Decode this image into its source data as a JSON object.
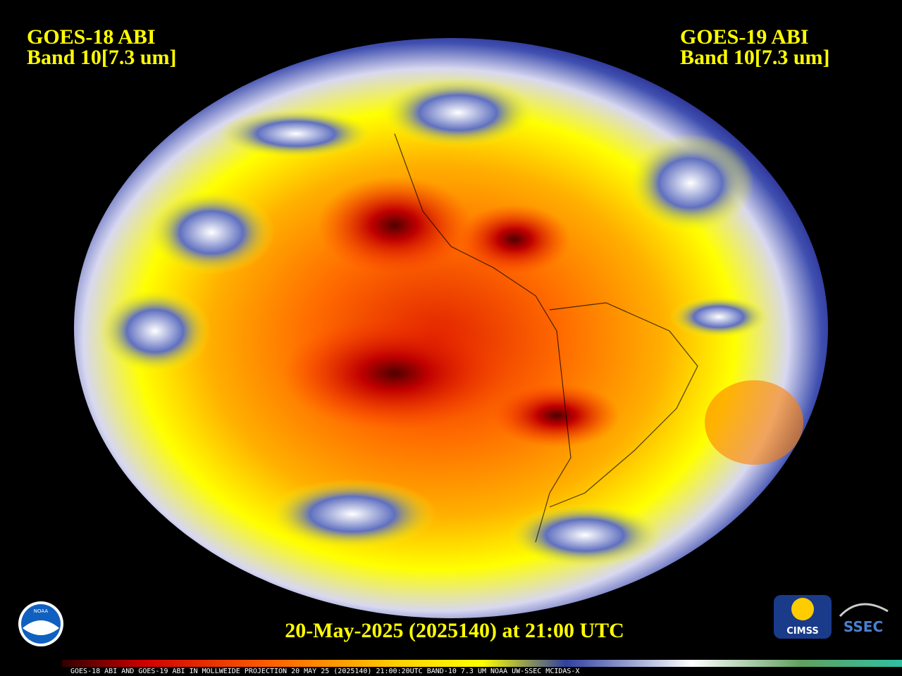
{
  "left_label": {
    "title": "GOES-18 ABI",
    "band": "Band 10[7.3 um]"
  },
  "right_label": {
    "title": "GOES-19 ABI",
    "band": "Band 10[7.3 um]"
  },
  "timestamp": "20-May-2025 (2025140) at 21:00 UTC",
  "colorbar": {
    "caption": "GOES-18 ABI AND GOES-19 ABI IN MOLLWEIDE PROJECTION 20 MAY 25 (2025140) 21:00:20UTC BAND-10 7.3 UM NOAA UW-SSEC MCIDAS-X"
  },
  "logos": {
    "noaa": "NOAA",
    "cimss": "CIMSS",
    "ssec": "SSEC"
  }
}
